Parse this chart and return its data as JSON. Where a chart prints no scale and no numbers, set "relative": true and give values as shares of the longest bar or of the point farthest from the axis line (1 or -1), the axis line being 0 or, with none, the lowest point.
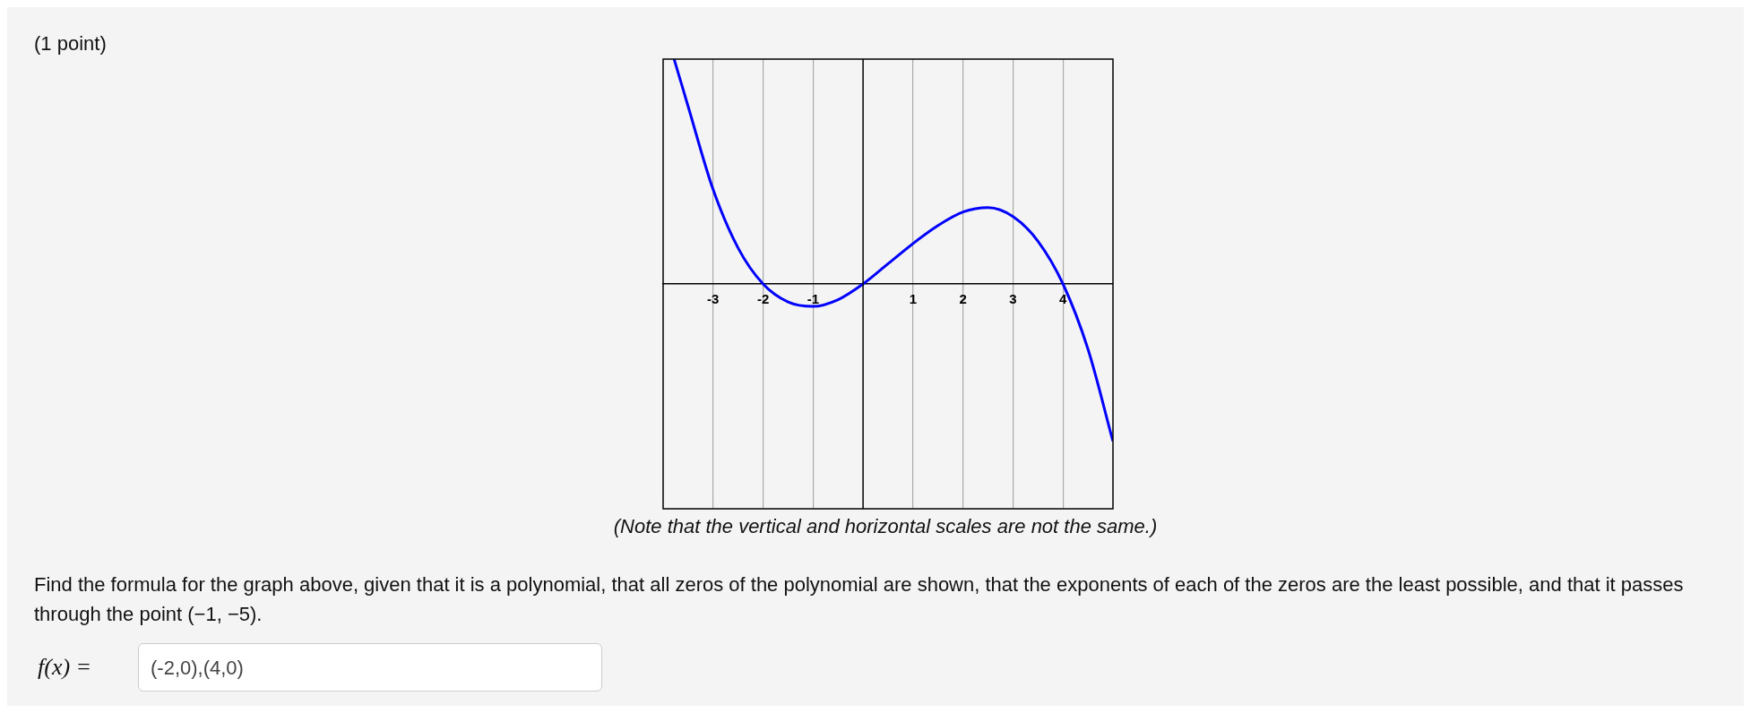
{
  "chart_data": {
    "type": "line",
    "relative": true,
    "x": [
      -3.78,
      -3.5,
      -3,
      -2.5,
      -2,
      -1.5,
      -1,
      -0.5,
      0,
      0.5,
      1,
      1.5,
      2,
      2.5,
      3,
      3.5,
      4,
      4.5,
      5
    ],
    "series": [
      {
        "color": "#0000ff",
        "values": [
          1,
          0.79,
          0.42,
          0.16,
          0,
          -0.08,
          -0.1,
          -0.07,
          0,
          0.09,
          0.18,
          0.26,
          0.32,
          0.34,
          0.3,
          0.19,
          0,
          -0.29,
          -0.7
        ]
      }
    ],
    "xlim": [
      -4,
      5
    ],
    "xticks": [
      -3,
      -2,
      -1,
      1,
      2,
      3,
      4
    ],
    "grid": "x",
    "marker": "none",
    "line_style": "solid",
    "annotations": [
      "(1 point)",
      "(Note that the vertical and horizontal scales are not the same.)",
      "Find the formula for the graph above, given that it is a polynomial, that all zeros of the polynomial are shown, that the exponents of each of the zeros are the least possible, and that it passes through the point (−1, −5).",
      "f(x) =",
      "(-2,0),(4,0)"
    ]
  }
}
